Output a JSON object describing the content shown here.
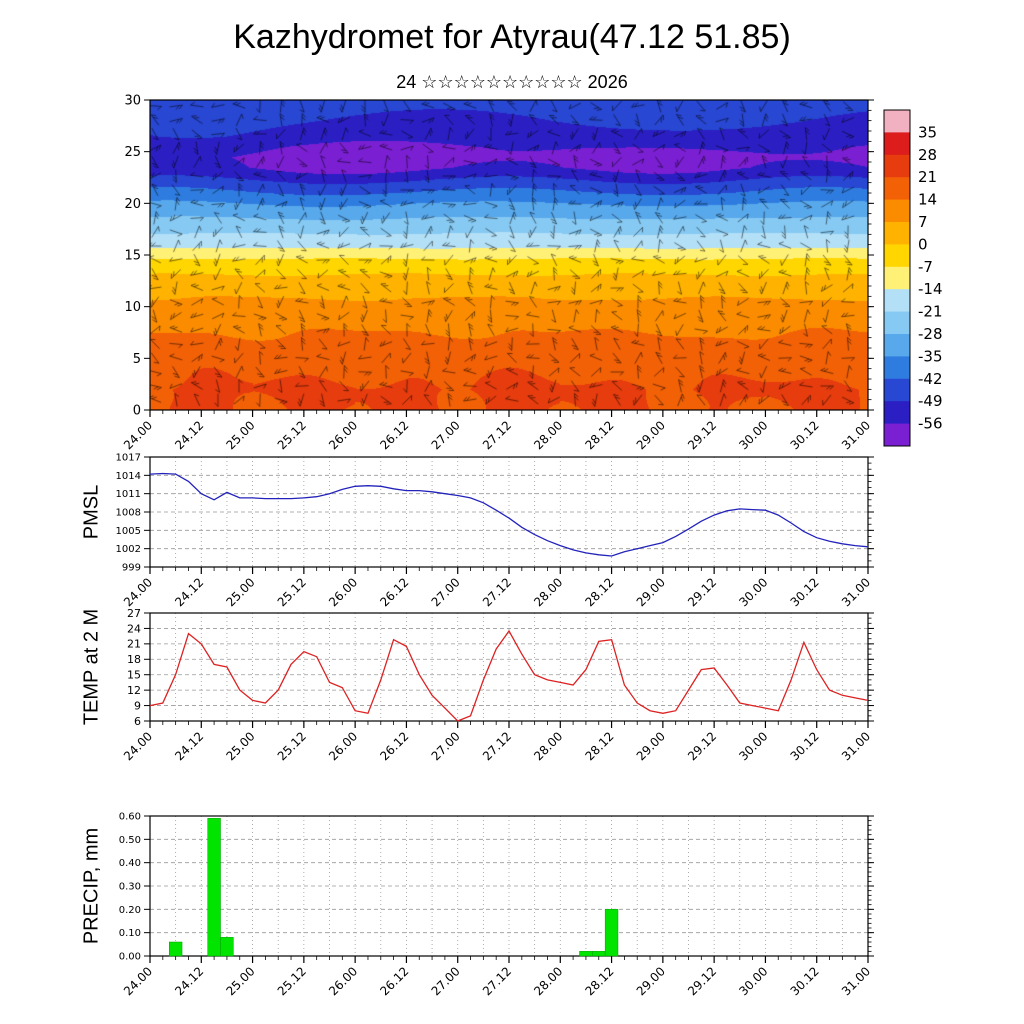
{
  "header": {
    "title": "Kazhydromet for Atyrau(47.12 51.85)",
    "subtitle": "24 ☆☆☆☆☆☆☆☆☆☆ 2026"
  },
  "time_axis": {
    "tick_labels": [
      "24.00",
      "24.12",
      "25.00",
      "25.12",
      "26.00",
      "26.12",
      "27.00",
      "27.12",
      "28.00",
      "28.12",
      "29.00",
      "29.12",
      "30.00",
      "30.12",
      "31.00"
    ],
    "label_step_hours": 12,
    "minor_step_hours": 3,
    "total_hours": 168
  },
  "chart_data": [
    {
      "id": "cross_section",
      "type": "heatmap",
      "title": "",
      "ylim": [
        0,
        30
      ],
      "yticks": [
        0,
        5,
        10,
        15,
        20,
        25,
        30
      ],
      "ytick_labels": [
        "0",
        "5",
        "10",
        "15",
        "20",
        "25",
        "30"
      ],
      "colorbar_ticks": [
        35,
        28,
        21,
        14,
        7,
        0,
        -7,
        -14,
        -21,
        -28,
        -35,
        -42,
        -49,
        -56
      ],
      "colorbar_tick_labels": [
        "35",
        "28",
        "21",
        "14",
        "7",
        "0",
        "-7",
        "-14",
        "-21",
        "-28",
        "-35",
        "-42",
        "-49",
        "-56"
      ],
      "colorbar_band_colors": [
        "#f2b1c0",
        "#dd1c1c",
        "#e63c0e",
        "#f26106",
        "#fb8c00",
        "#ffb300",
        "#ffd600",
        "#fff176",
        "#b3e0f7",
        "#86c9f2",
        "#58a8ec",
        "#2f7ce0",
        "#2847d2",
        "#2b1fc4",
        "#7a1fd2"
      ],
      "profile_levels": [
        0,
        2,
        5,
        8,
        10,
        12,
        14,
        15,
        16,
        18,
        20,
        21,
        22,
        23,
        23.5,
        24.5,
        25.5,
        26.5,
        28,
        30
      ],
      "profile_temps": [
        19,
        21,
        17,
        13,
        9,
        4,
        -3,
        -9,
        -16,
        -25,
        -35,
        -41,
        -47,
        -54,
        -57,
        -58.5,
        -56,
        -52,
        -49,
        -46
      ],
      "daily_warm_anomaly": [
        8,
        5,
        6,
        9,
        5.5,
        3.5,
        5
      ],
      "wind_barbs_overlay": true
    },
    {
      "id": "pmsl",
      "type": "line",
      "label": "PMSL",
      "color": "#2323bb",
      "ylim": [
        999,
        1017
      ],
      "yticks": [
        999,
        1002,
        1005,
        1008,
        1011,
        1014,
        1017
      ],
      "ytick_labels": [
        "999",
        "1002",
        "1005",
        "1008",
        "1011",
        "1014",
        "1017"
      ],
      "step_hours": 3,
      "values": [
        1014.2,
        1014.3,
        1014.2,
        1013.0,
        1011.0,
        1010.0,
        1011.2,
        1010.3,
        1010.3,
        1010.2,
        1010.2,
        1010.2,
        1010.3,
        1010.5,
        1011.0,
        1011.7,
        1012.2,
        1012.3,
        1012.2,
        1011.8,
        1011.5,
        1011.5,
        1011.3,
        1011.0,
        1010.7,
        1010.3,
        1009.5,
        1008.3,
        1007.0,
        1005.5,
        1004.3,
        1003.3,
        1002.5,
        1001.8,
        1001.3,
        1001.0,
        1000.8,
        1001.5,
        1002.0,
        1002.5,
        1003.0,
        1004.0,
        1005.2,
        1006.5,
        1007.5,
        1008.2,
        1008.5,
        1008.4,
        1008.3,
        1007.5,
        1006.2,
        1004.8,
        1003.8,
        1003.2,
        1002.8,
        1002.5,
        1002.3
      ]
    },
    {
      "id": "temp2m",
      "type": "line",
      "label": "TEMP at 2 M",
      "color": "#dd2222",
      "ylim": [
        6,
        27
      ],
      "yticks": [
        6,
        9,
        12,
        15,
        18,
        21,
        24,
        27
      ],
      "ytick_labels": [
        "6",
        "9",
        "12",
        "15",
        "18",
        "21",
        "24",
        "27"
      ],
      "step_hours": 3,
      "values": [
        9.0,
        9.5,
        15.0,
        23.0,
        21.0,
        17.0,
        16.5,
        12.0,
        10.0,
        9.5,
        12.0,
        17.0,
        19.5,
        18.5,
        13.5,
        12.5,
        8.0,
        7.5,
        14.0,
        21.8,
        20.5,
        15.0,
        11.0,
        8.5,
        6.0,
        7.0,
        14.0,
        20.0,
        23.5,
        19.0,
        15.0,
        14.0,
        13.5,
        13.0,
        16.0,
        21.5,
        21.8,
        13.0,
        9.5,
        8.0,
        7.5,
        8.0,
        12.0,
        16.0,
        16.3,
        13.0,
        9.5,
        9.0,
        8.5,
        8.0,
        14.0,
        21.3,
        16.0,
        12.0,
        11.0,
        10.5,
        10.0
      ]
    },
    {
      "id": "precip",
      "type": "bar",
      "label": "PRECIP, mm",
      "color": "#00e400",
      "ylim": [
        0,
        0.6
      ],
      "yticks": [
        0,
        0.1,
        0.2,
        0.3,
        0.4,
        0.5,
        0.6
      ],
      "ytick_labels": [
        "0.00",
        "0.10",
        "0.20",
        "0.30",
        "0.40",
        "0.50",
        "0.60"
      ],
      "step_hours": 3,
      "values": [
        0,
        0,
        0.06,
        0,
        0,
        0.59,
        0.08,
        0,
        0,
        0,
        0,
        0,
        0,
        0,
        0,
        0,
        0,
        0,
        0,
        0,
        0,
        0,
        0,
        0,
        0,
        0,
        0,
        0,
        0,
        0,
        0,
        0,
        0,
        0,
        0.02,
        0.02,
        0.2,
        0,
        0,
        0,
        0,
        0,
        0,
        0,
        0,
        0,
        0,
        0,
        0,
        0,
        0,
        0,
        0,
        0,
        0,
        0,
        0
      ]
    }
  ]
}
